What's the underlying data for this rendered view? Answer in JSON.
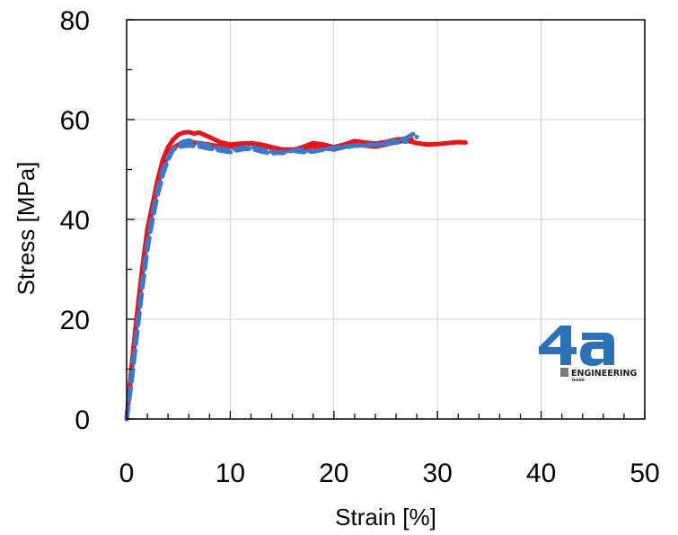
{
  "chart_data": {
    "type": "line",
    "xlabel": "Strain [%]",
    "ylabel": "Stress [MPa]",
    "xlim": [
      0,
      50
    ],
    "ylim": [
      0,
      80
    ],
    "x_ticks": [
      0,
      10,
      20,
      30,
      40,
      50
    ],
    "y_ticks": [
      0,
      20,
      40,
      60,
      80
    ],
    "grid": true,
    "legend": "none",
    "series": [
      {
        "color": "#e8141b",
        "style": "solid",
        "x": [
          0,
          0.5,
          1,
          1.5,
          2,
          2.5,
          3,
          3.5,
          4,
          4.5,
          5,
          5.5,
          6,
          6.5,
          7,
          8,
          9,
          10,
          11,
          12,
          13,
          14,
          15,
          16,
          17,
          18,
          19,
          20,
          21,
          22,
          23,
          24,
          25,
          26,
          27,
          28,
          29,
          30,
          31,
          32,
          32.7
        ],
        "y": [
          0,
          11,
          21,
          30,
          38,
          43,
          48,
          52,
          54.5,
          56,
          57,
          57.4,
          57.5,
          57.2,
          57.4,
          56.5,
          55.5,
          55,
          55.2,
          55.3,
          55,
          54.5,
          54,
          54,
          54.2,
          54.6,
          54.3,
          54,
          54.5,
          55,
          54.8,
          54.6,
          55,
          55.5,
          55.8,
          55.3,
          55,
          55.1,
          55.3,
          55.5,
          55.4
        ]
      },
      {
        "color": "#e8141b",
        "style": "solid",
        "x": [
          0,
          0.5,
          1,
          1.5,
          2,
          2.5,
          3,
          3.5,
          4,
          4.5,
          5,
          5.5,
          6,
          7,
          8,
          9,
          10,
          11,
          12,
          13,
          14,
          15,
          16,
          17,
          18,
          19,
          20,
          21,
          22,
          23,
          24,
          25,
          26,
          27,
          27.5
        ],
        "y": [
          0,
          10,
          20,
          29,
          37,
          42,
          47,
          50.5,
          53,
          54.3,
          55,
          55.3,
          55.5,
          55.3,
          55,
          54.6,
          54.5,
          54.8,
          55.2,
          54.8,
          54.3,
          54,
          53.8,
          54.5,
          55.3,
          55,
          54.5,
          55,
          55.7,
          55.4,
          55.2,
          55.5,
          56,
          56.2,
          56
        ]
      },
      {
        "color": "#3d78c8",
        "style": "dashed",
        "x": [
          0,
          0.5,
          1,
          1.5,
          2,
          2.5,
          3,
          3.5,
          4,
          4.5,
          5,
          5.5,
          6,
          6.5,
          7,
          8,
          9,
          10,
          11,
          12,
          13,
          14,
          15,
          16,
          17,
          18,
          19,
          20,
          21,
          22,
          23,
          24,
          25,
          26,
          27,
          27.8,
          28
        ],
        "y": [
          0,
          8,
          17,
          26,
          34,
          40,
          45,
          49,
          52,
          54,
          55,
          55.6,
          55.8,
          55.5,
          55.2,
          54.8,
          54.2,
          54,
          54.3,
          54.6,
          54,
          53.6,
          53.3,
          53.8,
          54,
          53.6,
          54,
          54.4,
          54.6,
          54.8,
          54.8,
          55,
          55.3,
          55.8,
          56.3,
          57.3,
          56.5
        ]
      },
      {
        "color": "#3d78c8",
        "style": "dashed",
        "x": [
          0,
          0.5,
          1,
          1.5,
          2,
          2.5,
          3,
          3.5,
          4,
          4.5,
          5,
          5.5,
          6,
          7,
          8,
          9,
          10,
          11,
          12,
          13,
          14,
          15,
          16,
          17,
          18,
          19,
          20,
          21,
          22,
          23,
          24,
          25,
          26,
          27
        ],
        "y": [
          0,
          9,
          18,
          27,
          35,
          41,
          46,
          50,
          52.5,
          54,
          54.5,
          54.7,
          54.8,
          54.6,
          54.2,
          53.8,
          53.5,
          54,
          54.2,
          53.6,
          53.2,
          53.5,
          53.8,
          53.5,
          53.6,
          54,
          54.2,
          54.4,
          54.8,
          55,
          54.9,
          55.1,
          55.4,
          55.6
        ]
      }
    ]
  },
  "logo": {
    "mark": "4a",
    "name": "ENGINEERING",
    "suffix": "GmbH"
  }
}
